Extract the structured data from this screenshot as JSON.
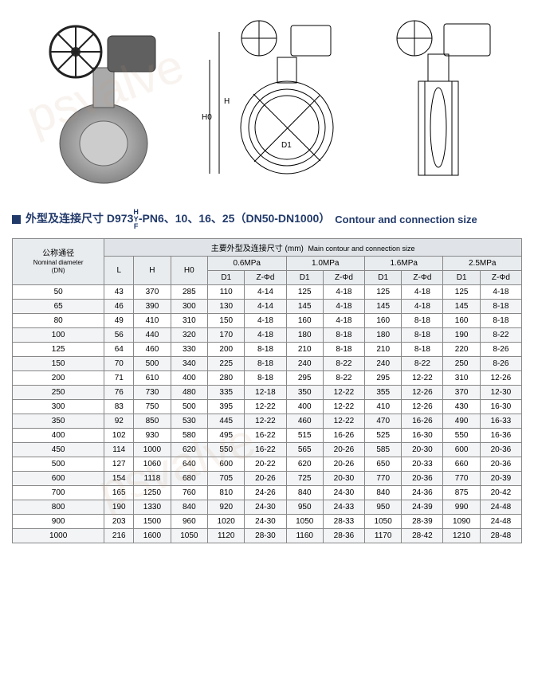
{
  "title": {
    "cn_prefix": "外型及连接尺寸 D973",
    "frac_top": "H",
    "frac_mid": "Y",
    "frac_bot": "F",
    "cn_suffix": "-PN6、10、16、25（DN50-DN1000）",
    "en": "Contour and connection size"
  },
  "headers": {
    "dn_cn": "公称通径",
    "dn_en": "Nominal diameter",
    "dn_unit": "(DN)",
    "main_cn": "主要外型及连接尺寸 (mm)",
    "main_en": "Main contour and connection size",
    "L": "L",
    "H": "H",
    "H0": "H0",
    "p06": "0.6MPa",
    "p10": "1.0MPa",
    "p16": "1.6MPa",
    "p25": "2.5MPa",
    "D1": "D1",
    "Zd": "Z-Φd"
  },
  "rows": [
    {
      "dn": "50",
      "L": "43",
      "H": "370",
      "H0": "285",
      "p06d": "110",
      "p06z": "4-14",
      "p10d": "125",
      "p10z": "4-18",
      "p16d": "125",
      "p16z": "4-18",
      "p25d": "125",
      "p25z": "4-18"
    },
    {
      "dn": "65",
      "L": "46",
      "H": "390",
      "H0": "300",
      "p06d": "130",
      "p06z": "4-14",
      "p10d": "145",
      "p10z": "4-18",
      "p16d": "145",
      "p16z": "4-18",
      "p25d": "145",
      "p25z": "8-18"
    },
    {
      "dn": "80",
      "L": "49",
      "H": "410",
      "H0": "310",
      "p06d": "150",
      "p06z": "4-18",
      "p10d": "160",
      "p10z": "4-18",
      "p16d": "160",
      "p16z": "8-18",
      "p25d": "160",
      "p25z": "8-18"
    },
    {
      "dn": "100",
      "L": "56",
      "H": "440",
      "H0": "320",
      "p06d": "170",
      "p06z": "4-18",
      "p10d": "180",
      "p10z": "8-18",
      "p16d": "180",
      "p16z": "8-18",
      "p25d": "190",
      "p25z": "8-22"
    },
    {
      "dn": "125",
      "L": "64",
      "H": "460",
      "H0": "330",
      "p06d": "200",
      "p06z": "8-18",
      "p10d": "210",
      "p10z": "8-18",
      "p16d": "210",
      "p16z": "8-18",
      "p25d": "220",
      "p25z": "8-26"
    },
    {
      "dn": "150",
      "L": "70",
      "H": "500",
      "H0": "340",
      "p06d": "225",
      "p06z": "8-18",
      "p10d": "240",
      "p10z": "8-22",
      "p16d": "240",
      "p16z": "8-22",
      "p25d": "250",
      "p25z": "8-26"
    },
    {
      "dn": "200",
      "L": "71",
      "H": "610",
      "H0": "400",
      "p06d": "280",
      "p06z": "8-18",
      "p10d": "295",
      "p10z": "8-22",
      "p16d": "295",
      "p16z": "12-22",
      "p25d": "310",
      "p25z": "12-26"
    },
    {
      "dn": "250",
      "L": "76",
      "H": "730",
      "H0": "480",
      "p06d": "335",
      "p06z": "12-18",
      "p10d": "350",
      "p10z": "12-22",
      "p16d": "355",
      "p16z": "12-26",
      "p25d": "370",
      "p25z": "12-30"
    },
    {
      "dn": "300",
      "L": "83",
      "H": "750",
      "H0": "500",
      "p06d": "395",
      "p06z": "12-22",
      "p10d": "400",
      "p10z": "12-22",
      "p16d": "410",
      "p16z": "12-26",
      "p25d": "430",
      "p25z": "16-30"
    },
    {
      "dn": "350",
      "L": "92",
      "H": "850",
      "H0": "530",
      "p06d": "445",
      "p06z": "12-22",
      "p10d": "460",
      "p10z": "12-22",
      "p16d": "470",
      "p16z": "16-26",
      "p25d": "490",
      "p25z": "16-33"
    },
    {
      "dn": "400",
      "L": "102",
      "H": "930",
      "H0": "580",
      "p06d": "495",
      "p06z": "16-22",
      "p10d": "515",
      "p10z": "16-26",
      "p16d": "525",
      "p16z": "16-30",
      "p25d": "550",
      "p25z": "16-36"
    },
    {
      "dn": "450",
      "L": "114",
      "H": "1000",
      "H0": "620",
      "p06d": "550",
      "p06z": "16-22",
      "p10d": "565",
      "p10z": "20-26",
      "p16d": "585",
      "p16z": "20-30",
      "p25d": "600",
      "p25z": "20-36"
    },
    {
      "dn": "500",
      "L": "127",
      "H": "1060",
      "H0": "640",
      "p06d": "600",
      "p06z": "20-22",
      "p10d": "620",
      "p10z": "20-26",
      "p16d": "650",
      "p16z": "20-33",
      "p25d": "660",
      "p25z": "20-36"
    },
    {
      "dn": "600",
      "L": "154",
      "H": "1118",
      "H0": "680",
      "p06d": "705",
      "p06z": "20-26",
      "p10d": "725",
      "p10z": "20-30",
      "p16d": "770",
      "p16z": "20-36",
      "p25d": "770",
      "p25z": "20-39"
    },
    {
      "dn": "700",
      "L": "165",
      "H": "1250",
      "H0": "760",
      "p06d": "810",
      "p06z": "24-26",
      "p10d": "840",
      "p10z": "24-30",
      "p16d": "840",
      "p16z": "24-36",
      "p25d": "875",
      "p25z": "20-42"
    },
    {
      "dn": "800",
      "L": "190",
      "H": "1330",
      "H0": "840",
      "p06d": "920",
      "p06z": "24-30",
      "p10d": "950",
      "p10z": "24-33",
      "p16d": "950",
      "p16z": "24-39",
      "p25d": "990",
      "p25z": "24-48"
    },
    {
      "dn": "900",
      "L": "203",
      "H": "1500",
      "H0": "960",
      "p06d": "1020",
      "p06z": "24-30",
      "p10d": "1050",
      "p10z": "28-33",
      "p16d": "1050",
      "p16z": "28-39",
      "p25d": "1090",
      "p25z": "24-48"
    },
    {
      "dn": "1000",
      "L": "216",
      "H": "1600",
      "H0": "1050",
      "p06d": "1120",
      "p06z": "28-30",
      "p10d": "1160",
      "p10z": "28-36",
      "p16d": "1170",
      "p16z": "28-42",
      "p25d": "1210",
      "p25z": "28-48"
    }
  ],
  "diagram_labels": {
    "H": "H",
    "H0": "H0",
    "D1": "D1"
  },
  "colors": {
    "brand": "#223a6a",
    "border": "#888888",
    "header_bg": "#e0e4e8",
    "sub_bg": "#e9ecef",
    "alt_bg": "#f2f4f6"
  }
}
